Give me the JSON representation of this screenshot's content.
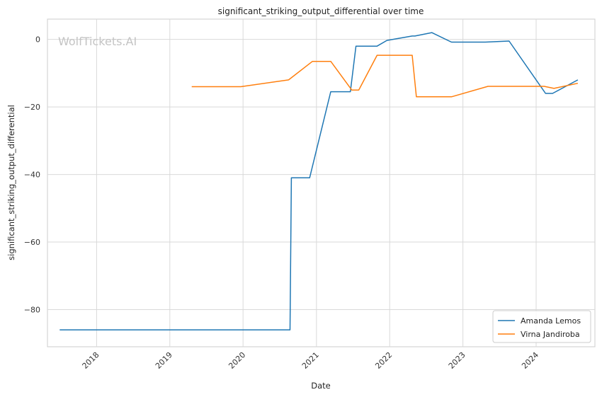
{
  "watermark": "WolfTickets.AI",
  "chart_data": {
    "type": "line",
    "title": "significant_striking_output_differential over time",
    "xlabel": "Date",
    "ylabel": "significant_striking_output_differential",
    "xlim": [
      "2017-05-01",
      "2024-10-20"
    ],
    "ylim": [
      -91,
      6
    ],
    "x_ticks": [
      "2018-01-01",
      "2019-01-01",
      "2020-01-01",
      "2021-01-01",
      "2022-01-01",
      "2023-01-01",
      "2024-01-01"
    ],
    "x_tick_labels": [
      "2018",
      "2019",
      "2020",
      "2021",
      "2022",
      "2023",
      "2024"
    ],
    "y_ticks": [
      0,
      -20,
      -40,
      -60,
      -80
    ],
    "y_tick_labels": [
      "0",
      "−20",
      "−40",
      "−60",
      "−80"
    ],
    "grid": true,
    "legend_position": "bottom-right",
    "series": [
      {
        "name": "Amanda Lemos",
        "color": "#1f77b4",
        "points": [
          {
            "x": "2017-07-01",
            "y": -86
          },
          {
            "x": "2020-08-22",
            "y": -86
          },
          {
            "x": "2020-08-29",
            "y": -41
          },
          {
            "x": "2020-11-28",
            "y": -41
          },
          {
            "x": "2021-03-13",
            "y": -15.5
          },
          {
            "x": "2021-06-19",
            "y": -15.5
          },
          {
            "x": "2021-07-17",
            "y": -2
          },
          {
            "x": "2021-10-30",
            "y": -2
          },
          {
            "x": "2021-12-18",
            "y": -0.3
          },
          {
            "x": "2022-04-23",
            "y": 1
          },
          {
            "x": "2022-05-07",
            "y": 1
          },
          {
            "x": "2022-07-30",
            "y": 2
          },
          {
            "x": "2022-11-05",
            "y": -0.8
          },
          {
            "x": "2023-04-22",
            "y": -0.8
          },
          {
            "x": "2023-08-19",
            "y": -0.5
          },
          {
            "x": "2024-02-17",
            "y": -16
          },
          {
            "x": "2024-03-23",
            "y": -16
          },
          {
            "x": "2024-07-27",
            "y": -12
          }
        ]
      },
      {
        "name": "Virna Jandiroba",
        "color": "#ff7f0e",
        "points": [
          {
            "x": "2019-04-20",
            "y": -14
          },
          {
            "x": "2019-12-21",
            "y": -14
          },
          {
            "x": "2020-08-15",
            "y": -12
          },
          {
            "x": "2020-12-12",
            "y": -6.5
          },
          {
            "x": "2021-03-13",
            "y": -6.5
          },
          {
            "x": "2021-06-26",
            "y": -15
          },
          {
            "x": "2021-07-31",
            "y": -15
          },
          {
            "x": "2021-10-30",
            "y": -4.7
          },
          {
            "x": "2022-04-23",
            "y": -4.7
          },
          {
            "x": "2022-05-14",
            "y": -17
          },
          {
            "x": "2022-11-05",
            "y": -17
          },
          {
            "x": "2023-05-06",
            "y": -13.9
          },
          {
            "x": "2024-02-10",
            "y": -13.9
          },
          {
            "x": "2024-03-30",
            "y": -14.5
          },
          {
            "x": "2024-07-27",
            "y": -13
          }
        ]
      }
    ]
  }
}
